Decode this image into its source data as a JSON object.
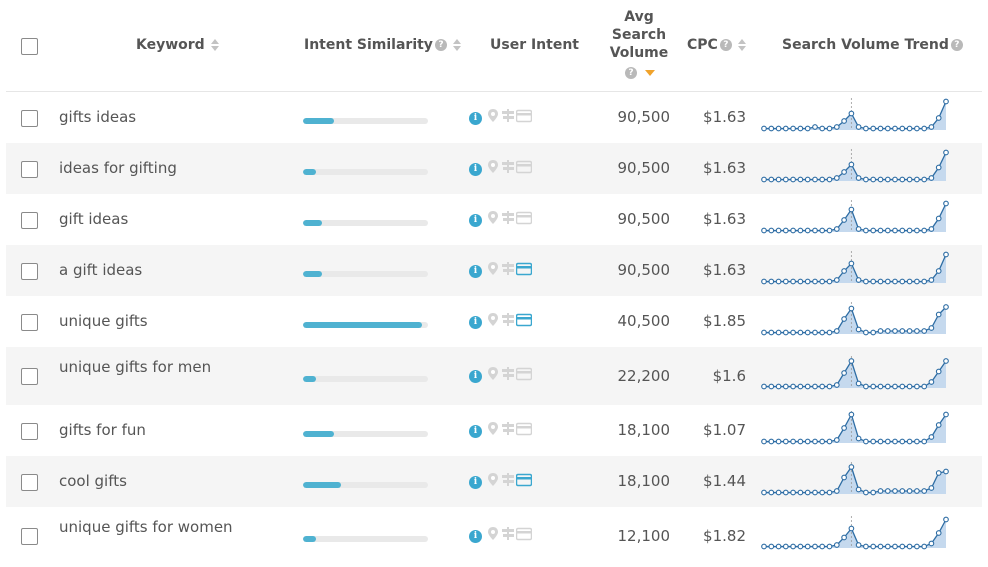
{
  "header": {
    "keyword": "Keyword",
    "intent_similarity": "Intent Similarity",
    "user_intent": "User Intent",
    "avg_search_volume": [
      "Avg",
      "Search",
      "Volume"
    ],
    "cpc": "CPC",
    "search_volume_trend": "Search Volume Trend",
    "help_glyph": "?"
  },
  "colors": {
    "accent": "#4fb2d1",
    "active_icon": "#3aa7cf",
    "inactive_icon": "#d4d4d4",
    "sort_active": "#f0a32c",
    "trend_line": "#2e6da4",
    "trend_fill": "#c5d9ee"
  },
  "rows": [
    {
      "keyword": "gifts ideas",
      "similarity": 0.25,
      "intents": {
        "informational": true,
        "local": false,
        "navigational": false,
        "transactional": false
      },
      "volume": "90,500",
      "cpc": "$1.63",
      "trend": [
        0.05,
        0.05,
        0.05,
        0.05,
        0.05,
        0.05,
        0.05,
        0.1,
        0.05,
        0.05,
        0.1,
        0.3,
        0.55,
        0.1,
        0.05,
        0.05,
        0.05,
        0.05,
        0.05,
        0.05,
        0.05,
        0.05,
        0.05,
        0.1,
        0.4,
        0.95
      ]
    },
    {
      "keyword": "ideas for gifting",
      "similarity": 0.1,
      "intents": {
        "informational": true,
        "local": false,
        "navigational": false,
        "transactional": false
      },
      "volume": "90,500",
      "cpc": "$1.63",
      "trend": [
        0.05,
        0.05,
        0.05,
        0.05,
        0.05,
        0.05,
        0.05,
        0.05,
        0.05,
        0.05,
        0.1,
        0.3,
        0.55,
        0.1,
        0.05,
        0.05,
        0.05,
        0.05,
        0.05,
        0.05,
        0.05,
        0.05,
        0.05,
        0.1,
        0.45,
        0.95
      ]
    },
    {
      "keyword": "gift ideas",
      "similarity": 0.15,
      "intents": {
        "informational": true,
        "local": false,
        "navigational": false,
        "transactional": false
      },
      "volume": "90,500",
      "cpc": "$1.63",
      "trend": [
        0.05,
        0.05,
        0.05,
        0.05,
        0.05,
        0.05,
        0.05,
        0.05,
        0.05,
        0.05,
        0.1,
        0.4,
        0.75,
        0.1,
        0.05,
        0.05,
        0.05,
        0.05,
        0.05,
        0.05,
        0.05,
        0.05,
        0.05,
        0.1,
        0.45,
        0.95
      ]
    },
    {
      "keyword": "a gift ideas",
      "similarity": 0.15,
      "intents": {
        "informational": true,
        "local": false,
        "navigational": false,
        "transactional": true
      },
      "volume": "90,500",
      "cpc": "$1.63",
      "trend": [
        0.05,
        0.05,
        0.05,
        0.05,
        0.05,
        0.05,
        0.05,
        0.05,
        0.05,
        0.05,
        0.1,
        0.4,
        0.65,
        0.1,
        0.05,
        0.05,
        0.05,
        0.05,
        0.05,
        0.05,
        0.05,
        0.05,
        0.05,
        0.1,
        0.4,
        0.95
      ]
    },
    {
      "keyword": "unique gifts",
      "similarity": 0.95,
      "intents": {
        "informational": true,
        "local": false,
        "navigational": false,
        "transactional": true
      },
      "volume": "40,500",
      "cpc": "$1.85",
      "trend": [
        0.05,
        0.05,
        0.05,
        0.05,
        0.05,
        0.05,
        0.05,
        0.05,
        0.05,
        0.05,
        0.1,
        0.5,
        0.85,
        0.15,
        0.05,
        0.05,
        0.1,
        0.1,
        0.1,
        0.1,
        0.1,
        0.1,
        0.1,
        0.2,
        0.65,
        0.9
      ]
    },
    {
      "keyword": "unique gifts for men",
      "similarity": 0.1,
      "intents": {
        "informational": true,
        "local": false,
        "navigational": false,
        "transactional": false
      },
      "volume": "22,200",
      "cpc": "$1.6",
      "trend": [
        0.05,
        0.05,
        0.05,
        0.05,
        0.05,
        0.05,
        0.05,
        0.05,
        0.05,
        0.05,
        0.1,
        0.5,
        0.9,
        0.15,
        0.05,
        0.05,
        0.05,
        0.05,
        0.05,
        0.05,
        0.05,
        0.05,
        0.05,
        0.2,
        0.55,
        0.9
      ]
    },
    {
      "keyword": "gifts for fun",
      "similarity": 0.25,
      "intents": {
        "informational": true,
        "local": false,
        "navigational": false,
        "transactional": false
      },
      "volume": "18,100",
      "cpc": "$1.07",
      "trend": [
        0.05,
        0.05,
        0.05,
        0.05,
        0.05,
        0.05,
        0.05,
        0.05,
        0.05,
        0.05,
        0.1,
        0.5,
        0.95,
        0.15,
        0.05,
        0.05,
        0.05,
        0.05,
        0.05,
        0.05,
        0.05,
        0.05,
        0.05,
        0.2,
        0.6,
        0.95
      ]
    },
    {
      "keyword": "cool gifts",
      "similarity": 0.3,
      "intents": {
        "informational": true,
        "local": false,
        "navigational": false,
        "transactional": true
      },
      "volume": "18,100",
      "cpc": "$1.44",
      "trend": [
        0.05,
        0.05,
        0.05,
        0.05,
        0.05,
        0.05,
        0.05,
        0.05,
        0.05,
        0.05,
        0.1,
        0.55,
        0.9,
        0.15,
        0.05,
        0.05,
        0.1,
        0.1,
        0.1,
        0.1,
        0.1,
        0.1,
        0.1,
        0.2,
        0.7,
        0.75
      ]
    },
    {
      "keyword": "unique gifts for women",
      "similarity": 0.1,
      "intents": {
        "informational": true,
        "local": false,
        "navigational": false,
        "transactional": false
      },
      "volume": "12,100",
      "cpc": "$1.82",
      "trend": [
        0.05,
        0.05,
        0.05,
        0.05,
        0.05,
        0.05,
        0.05,
        0.05,
        0.05,
        0.05,
        0.1,
        0.35,
        0.65,
        0.1,
        0.05,
        0.05,
        0.05,
        0.05,
        0.05,
        0.05,
        0.05,
        0.05,
        0.05,
        0.15,
        0.5,
        0.95
      ]
    }
  ]
}
